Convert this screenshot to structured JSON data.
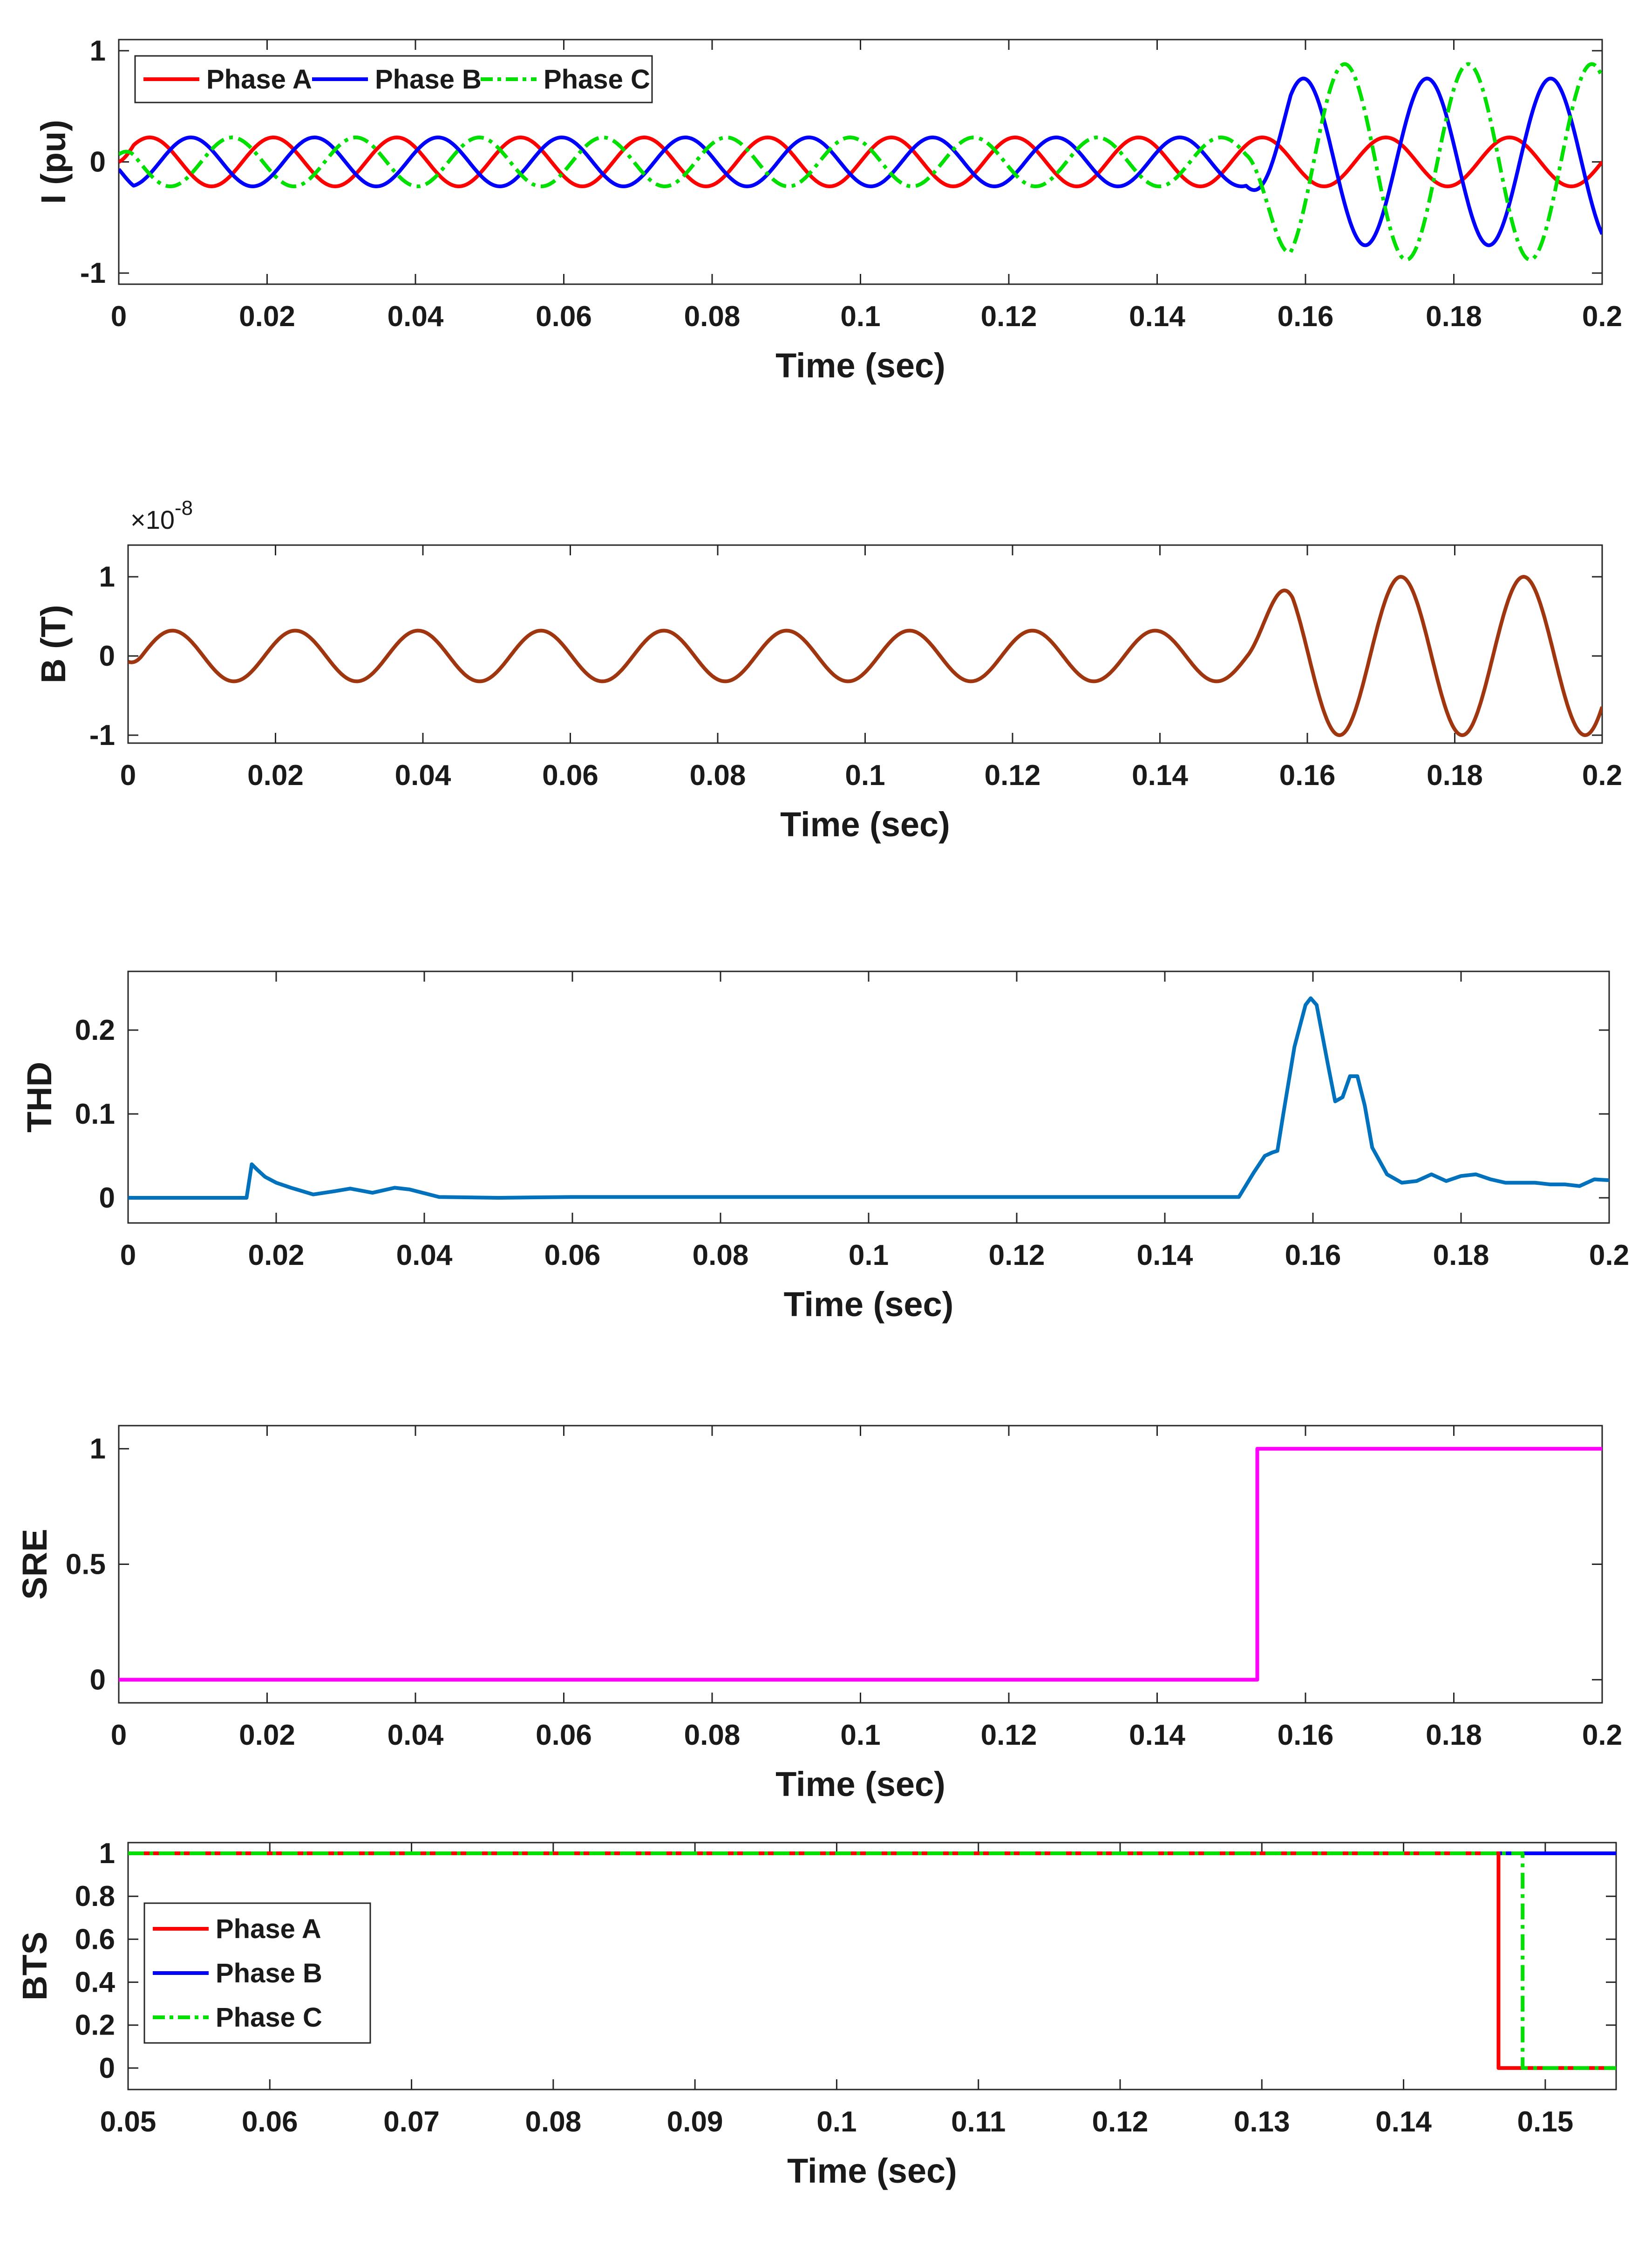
{
  "chart_data": [
    {
      "type": "line",
      "title": "",
      "xlabel": "Time (sec)",
      "ylabel": "I (pu)",
      "xlim": [
        0,
        0.2
      ],
      "ylim": [
        -1.1,
        1.1
      ],
      "xticks": [
        0,
        0.02,
        0.04,
        0.06,
        0.08,
        0.1,
        0.12,
        0.14,
        0.16,
        0.18,
        0.2
      ],
      "xtick_labels": [
        "0",
        "0.02",
        "0.04",
        "0.06",
        "0.08",
        "0.1",
        "0.12",
        "0.14",
        "0.16",
        "0.18",
        "0.2"
      ],
      "yticks": [
        -1,
        0,
        1
      ],
      "ytick_labels": [
        "-1",
        "0",
        "1"
      ],
      "legend": {
        "placement": "top-left",
        "labels": [
          "Phase A",
          "Phase B",
          "Phase C"
        ]
      },
      "series": [
        {
          "name": "Phase A",
          "color": "#ff0000",
          "style": "solid",
          "freq_hz": 60,
          "phase_deg": 0,
          "pre_amp": 0.22,
          "fault_start": 0.152,
          "post_amp": 0.22,
          "post_phase_deg": 0
        },
        {
          "name": "Phase B",
          "color": "#0000ff",
          "style": "solid",
          "freq_hz": 60,
          "phase_deg": -120,
          "pre_amp": 0.22,
          "fault_start": 0.152,
          "post_amp": 0.75,
          "post_phase_deg": -120
        },
        {
          "name": "Phase C",
          "color": "#00e000",
          "style": "dashdot",
          "freq_hz": 60,
          "phase_deg": 120,
          "pre_amp": 0.22,
          "fault_start": 0.152,
          "post_amp": 0.88,
          "post_phase_deg": 120
        }
      ]
    },
    {
      "type": "line",
      "title": "",
      "xlabel": "Time (sec)",
      "ylabel": "B (T)",
      "y_exponent": "×10-8",
      "y_exponent_base": "×10",
      "y_exponent_power": "-8",
      "xlim": [
        0,
        0.2
      ],
      "ylim": [
        -1.1,
        1.4
      ],
      "xticks": [
        0,
        0.02,
        0.04,
        0.06,
        0.08,
        0.1,
        0.12,
        0.14,
        0.16,
        0.18,
        0.2
      ],
      "xtick_labels": [
        "0",
        "0.02",
        "0.04",
        "0.06",
        "0.08",
        "0.1",
        "0.12",
        "0.14",
        "0.16",
        "0.18",
        "0.2"
      ],
      "yticks": [
        -1,
        0,
        1
      ],
      "ytick_labels": [
        "-1",
        "0",
        "1"
      ],
      "series": [
        {
          "name": "B",
          "color": "#a0360f",
          "style": "solid",
          "freq_hz": 60,
          "phase_deg": -40,
          "pre_amp": 0.32,
          "fault_start": 0.152,
          "post_amp": 1.0,
          "post_phase_deg": -40
        }
      ]
    },
    {
      "type": "line",
      "title": "",
      "xlabel": "Time (sec)",
      "ylabel": "THD",
      "xlim": [
        0,
        0.2
      ],
      "ylim": [
        -0.03,
        0.27
      ],
      "xticks": [
        0,
        0.02,
        0.04,
        0.06,
        0.08,
        0.1,
        0.12,
        0.14,
        0.16,
        0.18,
        0.2
      ],
      "xtick_labels": [
        "0",
        "0.02",
        "0.04",
        "0.06",
        "0.08",
        "0.1",
        "0.12",
        "0.14",
        "0.16",
        "0.18",
        "0.2"
      ],
      "yticks": [
        0,
        0.1,
        0.2
      ],
      "ytick_labels": [
        "0",
        "0.1",
        "0.2"
      ],
      "series": [
        {
          "name": "THD",
          "color": "#0072bd",
          "style": "solid",
          "x": [
            0,
            0.016,
            0.0167,
            0.0175,
            0.0185,
            0.02,
            0.022,
            0.025,
            0.028,
            0.03,
            0.033,
            0.036,
            0.038,
            0.042,
            0.05,
            0.06,
            0.08,
            0.1,
            0.12,
            0.14,
            0.15,
            0.152,
            0.1535,
            0.1545,
            0.1552,
            0.156,
            0.1575,
            0.159,
            0.1597,
            0.1605,
            0.162,
            0.163,
            0.164,
            0.165,
            0.166,
            0.167,
            0.168,
            0.17,
            0.172,
            0.174,
            0.176,
            0.178,
            0.18,
            0.182,
            0.184,
            0.186,
            0.188,
            0.19,
            0.192,
            0.194,
            0.196,
            0.198,
            0.2
          ],
          "y": [
            0,
            0,
            0.04,
            0.033,
            0.025,
            0.018,
            0.012,
            0.004,
            0.008,
            0.011,
            0.006,
            0.012,
            0.01,
            0.001,
            0,
            0.001,
            0.001,
            0.001,
            0.001,
            0.001,
            0.001,
            0.03,
            0.05,
            0.054,
            0.056,
            0.1,
            0.18,
            0.23,
            0.238,
            0.23,
            0.16,
            0.115,
            0.12,
            0.145,
            0.145,
            0.11,
            0.06,
            0.028,
            0.018,
            0.02,
            0.028,
            0.02,
            0.026,
            0.028,
            0.022,
            0.018,
            0.018,
            0.018,
            0.016,
            0.016,
            0.014,
            0.022,
            0.021
          ]
        }
      ]
    },
    {
      "type": "line",
      "title": "",
      "xlabel": "Time (sec)",
      "ylabel": "SRE",
      "xlim": [
        0,
        0.2
      ],
      "ylim": [
        -0.1,
        1.1
      ],
      "xticks": [
        0,
        0.02,
        0.04,
        0.06,
        0.08,
        0.1,
        0.12,
        0.14,
        0.16,
        0.18,
        0.2
      ],
      "xtick_labels": [
        "0",
        "0.02",
        "0.04",
        "0.06",
        "0.08",
        "0.1",
        "0.12",
        "0.14",
        "0.16",
        "0.18",
        "0.2"
      ],
      "yticks": [
        0,
        0.5,
        1
      ],
      "ytick_labels": [
        "0",
        "0.5",
        "1"
      ],
      "series": [
        {
          "name": "SRE",
          "color": "#ff00ff",
          "style": "solid",
          "x": [
            0,
            0.1535,
            0.1535,
            0.2
          ],
          "y": [
            0,
            0,
            1,
            1
          ]
        }
      ]
    },
    {
      "type": "line",
      "title": "",
      "xlabel": "Time (sec)",
      "ylabel": "BTS",
      "xlim": [
        0.05,
        0.155
      ],
      "ylim": [
        -0.1,
        1.05
      ],
      "xticks": [
        0.05,
        0.06,
        0.07,
        0.08,
        0.09,
        0.1,
        0.11,
        0.12,
        0.13,
        0.14,
        0.15
      ],
      "xtick_labels": [
        "0.05",
        "0.06",
        "0.07",
        "0.08",
        "0.09",
        "0.1",
        "0.11",
        "0.12",
        "0.13",
        "0.14",
        "0.15"
      ],
      "yticks": [
        0,
        0.2,
        0.4,
        0.6,
        0.8,
        1
      ],
      "ytick_labels": [
        "0",
        "0.2",
        "0.4",
        "0.6",
        "0.8",
        "1"
      ],
      "legend": {
        "placement": "middle-left",
        "labels": [
          "Phase A",
          "Phase B",
          "Phase C"
        ]
      },
      "series": [
        {
          "name": "Phase A",
          "color": "#ff0000",
          "style": "solid",
          "x": [
            0.05,
            0.1467,
            0.1467,
            0.155
          ],
          "y": [
            1,
            1,
            0,
            0
          ]
        },
        {
          "name": "Phase B",
          "color": "#0000ff",
          "style": "solid",
          "x": [
            0.05,
            0.155
          ],
          "y": [
            1,
            1
          ]
        },
        {
          "name": "Phase C",
          "color": "#00e000",
          "style": "dashdot",
          "x": [
            0.05,
            0.1484,
            0.1484,
            0.155
          ],
          "y": [
            1,
            1,
            0,
            0
          ]
        }
      ]
    }
  ]
}
